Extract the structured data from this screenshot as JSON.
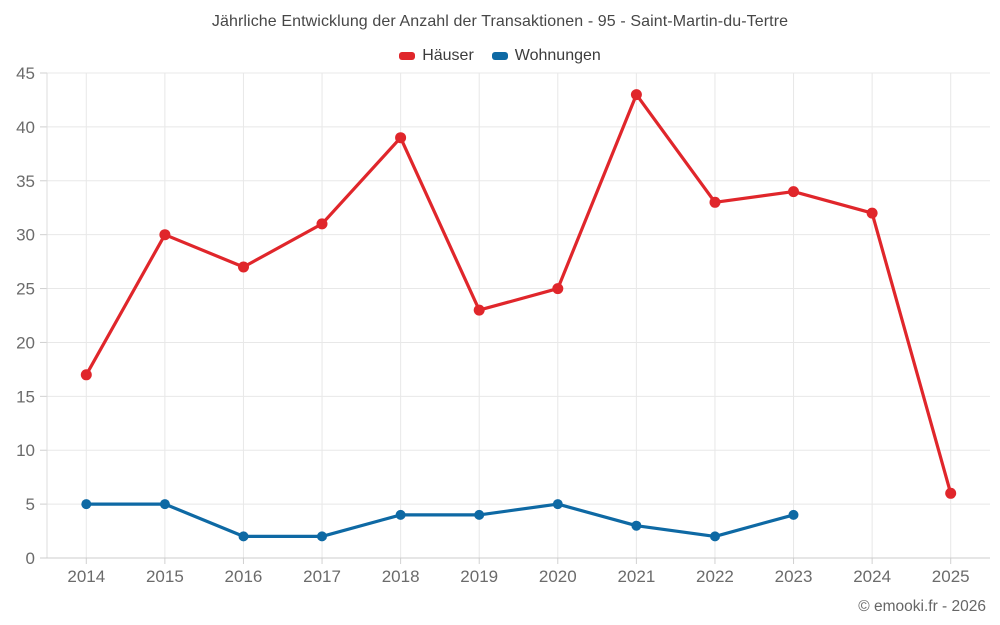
{
  "credit": "© emooki.fr - 2026",
  "chart_data": {
    "type": "line",
    "title": "Jährliche Entwicklung der Anzahl der Transaktionen - 95 - Saint-Martin-du-Tertre",
    "xlabel": "",
    "ylabel": "",
    "categories": [
      "2014",
      "2015",
      "2016",
      "2017",
      "2018",
      "2019",
      "2020",
      "2021",
      "2022",
      "2023",
      "2024",
      "2025"
    ],
    "series": [
      {
        "name": "Häuser",
        "color": "#e0262b",
        "values": [
          17,
          30,
          27,
          31,
          39,
          23,
          25,
          43,
          33,
          34,
          32,
          6
        ]
      },
      {
        "name": "Wohnungen",
        "color": "#0e69a4",
        "values": [
          5,
          5,
          2,
          2,
          4,
          4,
          5,
          3,
          2,
          4,
          null,
          null
        ]
      }
    ],
    "ylim": [
      0,
      45
    ],
    "ytick_step": 5,
    "grid": true,
    "legend_position": "top",
    "grid_color": "#e8e8e8",
    "axis_line_color": "#cccccc",
    "tick_color": "#d0d0d0",
    "axis_label_color": "#6b6b6b",
    "title_color": "#474747"
  }
}
